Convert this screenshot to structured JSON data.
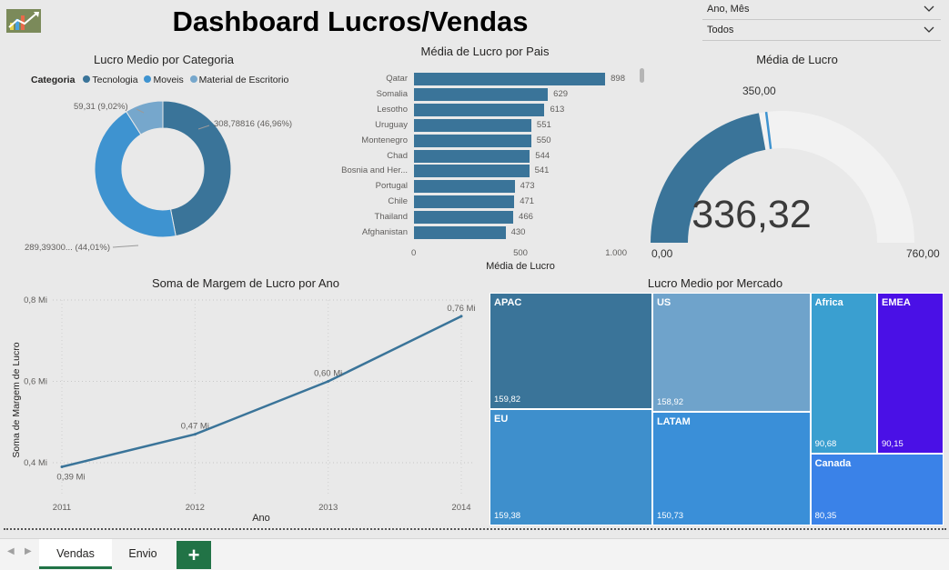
{
  "dashboard": {
    "title": "Dashboard Lucros/Vendas"
  },
  "slicers": [
    {
      "label": "Ano, Mês"
    },
    {
      "label": "Todos"
    }
  ],
  "colors": {
    "primary": "#3a7499",
    "gauge_bg": "#f2f2f2",
    "tab_accent": "#217346"
  },
  "icons": {
    "logo": "chart-logo-icon",
    "chevron": "chevron-down-icon",
    "add": "plus-icon"
  },
  "tabs": {
    "items": [
      "Vendas",
      "Envio"
    ],
    "active": "Vendas",
    "add_label": "+"
  },
  "chart_data": [
    {
      "type": "pie",
      "title": "Lucro Medio por Categoria",
      "legend_title": "Categoria",
      "legend_placement": "top-left",
      "labels": [
        "Tecnologia",
        "Moveis",
        "Material de Escritorio"
      ],
      "values": [
        308.78816,
        289.393,
        59.31
      ],
      "percent": [
        46.96,
        44.01,
        9.02
      ],
      "data_labels": [
        "308,78816 (46,96%)",
        "289,39300... (44,01%)",
        "59,31 (9,02%)"
      ],
      "colors": [
        "#3a7499",
        "#3e93d0",
        "#76a7cc"
      ]
    },
    {
      "type": "bar",
      "orientation": "horizontal",
      "title": "Média de Lucro por Pais",
      "xlabel": "Média de Lucro",
      "categories": [
        "Qatar",
        "Somalia",
        "Lesotho",
        "Uruguay",
        "Montenegro",
        "Chad",
        "Bosnia and Her...",
        "Portugal",
        "Chile",
        "Thailand",
        "Afghanistan"
      ],
      "values": [
        898,
        629,
        613,
        551,
        550,
        544,
        541,
        473,
        471,
        466,
        430
      ],
      "xlim": [
        0,
        1000
      ],
      "xticks": [
        0,
        500,
        1000
      ],
      "xtick_labels": [
        "0",
        "500",
        "1.000"
      ]
    },
    {
      "type": "gauge",
      "title": "Média de Lucro",
      "value": 336.32,
      "value_label": "336,32",
      "min": 0,
      "min_label": "0,00",
      "max": 760,
      "max_label": "760,00",
      "target": 350,
      "target_label": "350,00"
    },
    {
      "type": "line",
      "title": "Soma de Margem de Lucro por Ano",
      "xlabel": "Ano",
      "ylabel": "Soma de Margem de Lucro",
      "x": [
        2011,
        2012,
        2013,
        2014
      ],
      "values": [
        0.39,
        0.47,
        0.6,
        0.76
      ],
      "data_labels": [
        "0,39 Mi",
        "0,47 Mi",
        "0,60 Mi",
        "0,76 Mi"
      ],
      "ylim": [
        0.38,
        0.8
      ],
      "yticks": [
        0.4,
        0.6,
        0.8
      ],
      "ytick_labels": [
        "0,4 Mi",
        "0,6 Mi",
        "0,8 Mi"
      ],
      "grid": true
    },
    {
      "type": "treemap",
      "title": "Lucro Medio por Mercado",
      "items": [
        {
          "name": "APAC",
          "value": 159.82,
          "label": "159,82",
          "color": "#3a7499"
        },
        {
          "name": "EU",
          "value": 159.38,
          "label": "159,38",
          "color": "#3e8fcc"
        },
        {
          "name": "US",
          "value": 158.92,
          "label": "158,92",
          "color": "#6fa3cb"
        },
        {
          "name": "LATAM",
          "value": 150.73,
          "label": "150,73",
          "color": "#3a8fd8"
        },
        {
          "name": "Africa",
          "value": 90.68,
          "label": "90,68",
          "color": "#3a9fd0"
        },
        {
          "name": "EMEA",
          "value": 90.15,
          "label": "90,15",
          "color": "#4a10e6"
        },
        {
          "name": "Canada",
          "value": 80.35,
          "label": "80,35",
          "color": "#3a82e8"
        }
      ]
    }
  ]
}
